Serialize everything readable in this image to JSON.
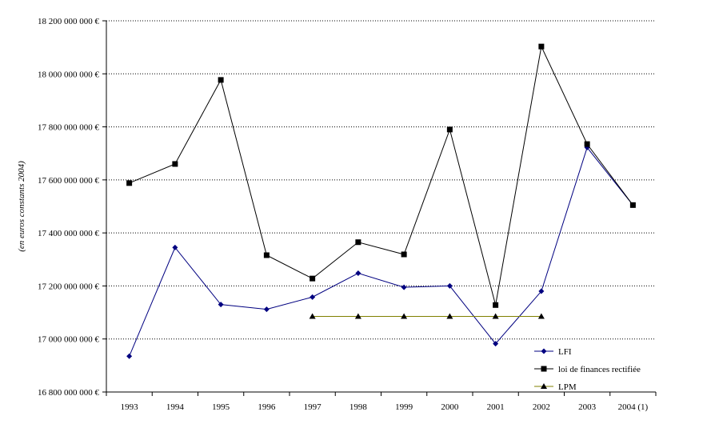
{
  "chart_data": {
    "type": "line",
    "categories": [
      "1993",
      "1994",
      "1995",
      "1996",
      "1997",
      "1998",
      "1999",
      "2000",
      "2001",
      "2002",
      "2003",
      "2004 (1)"
    ],
    "ylabel": "(en euros constants 2004)",
    "ylim": [
      16800000000,
      18200000000
    ],
    "yticks": [
      16800000000,
      17000000000,
      17200000000,
      17400000000,
      17600000000,
      17800000000,
      18000000000,
      18200000000
    ],
    "ytick_labels": [
      "16 800 000 000 €",
      "17 000 000 000 €",
      "17 200 000 000 €",
      "17 400 000 000 €",
      "17 600 000 000 €",
      "17 800 000 000 €",
      "18 000 000 000 €",
      "18 200 000 000 €"
    ],
    "grid": "horizontal dotted",
    "legend": "bottom-right",
    "series": [
      {
        "name": "LFI",
        "marker": "diamond",
        "color": "#000080",
        "values": [
          16935000000,
          17345000000,
          17130000000,
          17112000000,
          17158000000,
          17248000000,
          17195000000,
          17200000000,
          16982000000,
          17180000000,
          17722000000,
          17505000000
        ]
      },
      {
        "name": "loi de finances rectifiée",
        "marker": "square",
        "color": "#000000",
        "values": [
          17588000000,
          17660000000,
          17977000000,
          17316000000,
          17228000000,
          17365000000,
          17319000000,
          17790000000,
          17128000000,
          18103000000,
          17735000000,
          17505000000
        ]
      },
      {
        "name": "LPM",
        "marker": "triangle",
        "color": "#000000",
        "line_color": "#808000",
        "values": [
          null,
          null,
          null,
          null,
          17085000000,
          17085000000,
          17085000000,
          17085000000,
          17085000000,
          17085000000,
          null,
          null
        ]
      }
    ]
  }
}
